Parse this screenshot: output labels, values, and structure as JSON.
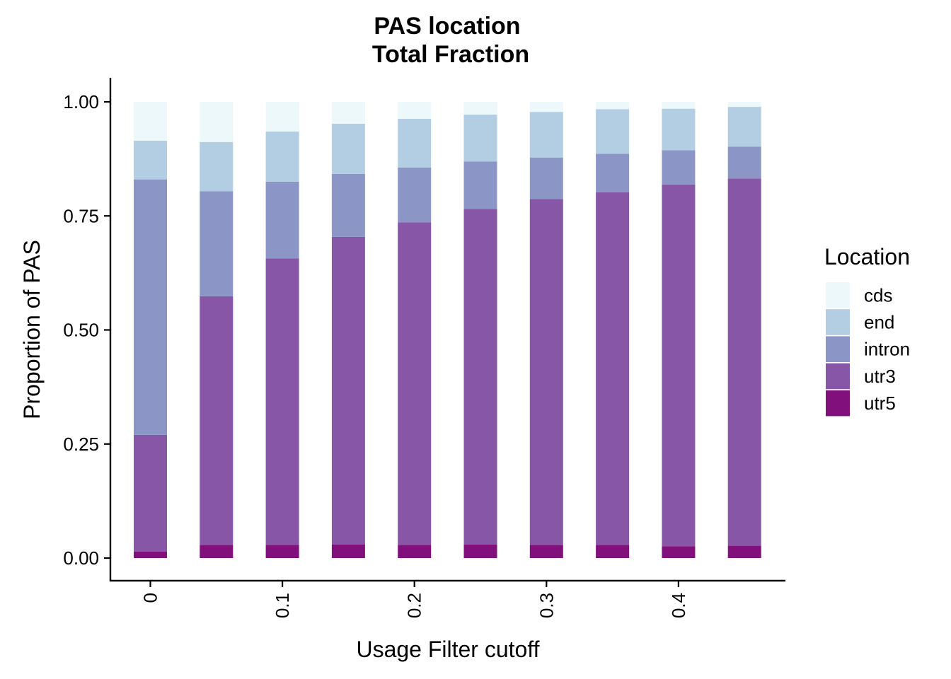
{
  "chart_data": {
    "type": "bar",
    "stacked": true,
    "title": "PAS location",
    "subtitle": "Total Fraction",
    "xlabel": "Usage Filter cutoff",
    "ylabel": "Proportion of PAS",
    "x": [
      0,
      0.05,
      0.1,
      0.15,
      0.2,
      0.25,
      0.3,
      0.35,
      0.4,
      0.45
    ],
    "x_ticks": [
      {
        "value": 0,
        "label": "0"
      },
      {
        "value": 0.1,
        "label": "0.1"
      },
      {
        "value": 0.2,
        "label": "0.2"
      },
      {
        "value": 0.3,
        "label": "0.3"
      },
      {
        "value": 0.4,
        "label": "0.4"
      }
    ],
    "ylim": [
      0,
      1
    ],
    "y_ticks": [
      {
        "value": 0,
        "label": "0.00"
      },
      {
        "value": 0.25,
        "label": "0.25"
      },
      {
        "value": 0.5,
        "label": "0.50"
      },
      {
        "value": 0.75,
        "label": "0.75"
      },
      {
        "value": 1,
        "label": "1.00"
      }
    ],
    "legend_title": "Location",
    "legend_position": "right",
    "grid": false,
    "stack_order_bottom_to_top": [
      "utr5",
      "utr3",
      "intron",
      "end",
      "cds"
    ],
    "legend_order": [
      "cds",
      "end",
      "intron",
      "utr3",
      "utr5"
    ],
    "series": [
      {
        "name": "cds",
        "color": "#EDF8FB",
        "values": [
          0.085,
          0.088,
          0.065,
          0.048,
          0.037,
          0.028,
          0.022,
          0.016,
          0.015,
          0.011
        ]
      },
      {
        "name": "end",
        "color": "#B3CDE3",
        "values": [
          0.085,
          0.108,
          0.11,
          0.11,
          0.107,
          0.103,
          0.1,
          0.098,
          0.091,
          0.087
        ]
      },
      {
        "name": "intron",
        "color": "#8C96C6",
        "values": [
          0.56,
          0.23,
          0.168,
          0.138,
          0.12,
          0.104,
          0.091,
          0.084,
          0.075,
          0.07
        ]
      },
      {
        "name": "utr3",
        "color": "#8856A7",
        "values": [
          0.256,
          0.545,
          0.628,
          0.674,
          0.707,
          0.735,
          0.758,
          0.773,
          0.793,
          0.805
        ]
      },
      {
        "name": "utr5",
        "color": "#810F7C",
        "values": [
          0.014,
          0.029,
          0.029,
          0.03,
          0.029,
          0.03,
          0.029,
          0.029,
          0.026,
          0.027
        ]
      }
    ]
  }
}
